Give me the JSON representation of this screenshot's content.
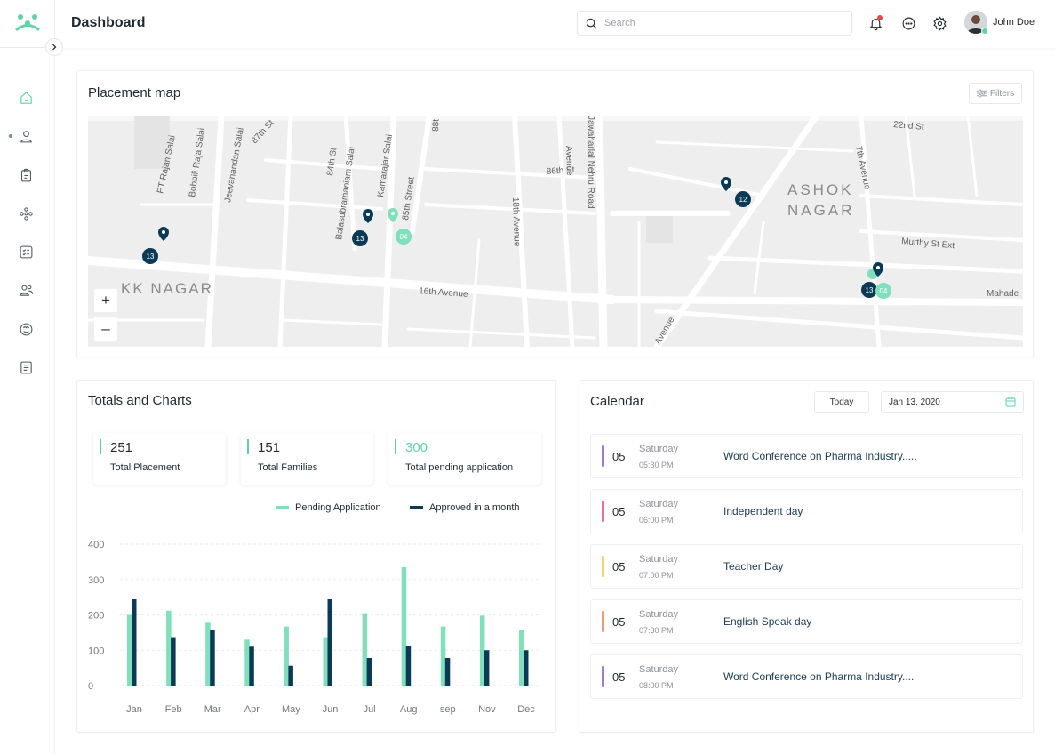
{
  "app": {
    "title": "Dashboard"
  },
  "search": {
    "placeholder": "Search"
  },
  "user": {
    "name": "John Doe"
  },
  "colors": {
    "accent": "#5ed3a8",
    "navy": "#0b3a56",
    "notification": "#e5484d"
  },
  "sidebar": {
    "items": [
      {
        "icon": "home-icon",
        "active": true
      },
      {
        "icon": "user-icon"
      },
      {
        "icon": "clipboard-icon"
      },
      {
        "icon": "network-icon"
      },
      {
        "icon": "checklist-icon"
      },
      {
        "icon": "users-icon"
      },
      {
        "icon": "support-icon"
      },
      {
        "icon": "document-icon"
      }
    ]
  },
  "placement_map": {
    "title": "Placement map",
    "filters_label": "Filters",
    "zoom_in": "+",
    "zoom_out": "–",
    "area_labels": [
      "KK NAGAR",
      "ASHOK",
      "NAGAR"
    ],
    "street_labels": [
      "PT Rajan Salai",
      "Bobbili Raja Salai",
      "Jeevanandan Salai",
      "87th St",
      "84th St",
      "Balasubramaniam Salai",
      "Kamarajar Salai",
      "85th Street",
      "88t",
      "Avenue",
      "86th St",
      "Jawaharlal Nehru Road",
      "18th Avenue",
      "16th Avenue",
      "22nd St",
      "7th Avenue",
      "Murthy St Ext",
      "Mahade",
      "Avenue"
    ],
    "markers": [
      {
        "label": "13",
        "color": "navy"
      },
      {
        "label": "13",
        "color": "navy"
      },
      {
        "label": "04",
        "color": "accent"
      },
      {
        "label": "12",
        "color": "navy"
      },
      {
        "label": "13",
        "color": "navy"
      },
      {
        "label": "04",
        "color": "accent"
      }
    ]
  },
  "totals": {
    "title": "Totals and Charts",
    "stats": [
      {
        "value": "251",
        "label": "Total Placement"
      },
      {
        "value": "151",
        "label": "Total Families"
      },
      {
        "value": "300",
        "label": "Total pending application"
      }
    ]
  },
  "chart_data": {
    "type": "bar",
    "categories": [
      "Jan",
      "Feb",
      "Mar",
      "Apr",
      "May",
      "Jun",
      "Jul",
      "Aug",
      "sep",
      "Nov",
      "Dec"
    ],
    "series": [
      {
        "name": "Pending Application",
        "color": "#7fe0bb",
        "values": [
          200,
          212,
          178,
          130,
          167,
          137,
          205,
          335,
          167,
          198,
          157
        ]
      },
      {
        "name": "Approved in a month",
        "color": "#0b3a56",
        "values": [
          244,
          137,
          157,
          110,
          56,
          244,
          78,
          113,
          78,
          100,
          100
        ]
      }
    ],
    "yticks": [
      "400",
      "300",
      "200",
      "100",
      "0"
    ],
    "ylim": [
      0,
      400
    ],
    "grid": true,
    "legend": "top-right"
  },
  "calendar": {
    "title": "Calendar",
    "today_label": "Today",
    "date_value": "Jan 13, 2020",
    "events": [
      {
        "day": "05",
        "weekday": "Saturday",
        "time": "05:30 PM",
        "title": "Word Conference on Pharma Industry.....",
        "color": "#9b7be0"
      },
      {
        "day": "05",
        "weekday": "Saturday",
        "time": "06:00 PM",
        "title": "Independent day",
        "color": "#ea6f95"
      },
      {
        "day": "05",
        "weekday": "Saturday",
        "time": "07:00 PM",
        "title": "Teacher Day",
        "color": "#f3d46b"
      },
      {
        "day": "05",
        "weekday": "Saturday",
        "time": "07:30 PM",
        "title": "English Speak day",
        "color": "#f29a72"
      },
      {
        "day": "05",
        "weekday": "Saturday",
        "time": "08:00 PM",
        "title": "Word Conference on Pharma Industry....",
        "color": "#9b7be0"
      }
    ]
  }
}
